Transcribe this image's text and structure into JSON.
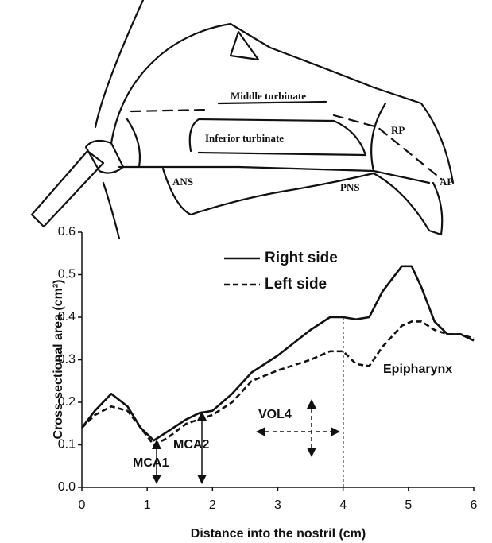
{
  "diagram": {
    "labels": [
      "Middle turbinate",
      "Inferior turbinate",
      "RP",
      "AP",
      "ANS",
      "PNS"
    ]
  },
  "chart_data": {
    "type": "line",
    "x_label": "Distance into the nostril (cm)",
    "y_label": "Cross-sectional area (cm²)",
    "x": [
      0,
      0.2,
      0.45,
      0.7,
      0.9,
      1.1,
      1.3,
      1.6,
      1.8,
      2.0,
      2.3,
      2.6,
      3.0,
      3.5,
      3.8,
      4.0,
      4.2,
      4.4,
      4.6,
      4.9,
      5.05,
      5.2,
      5.4,
      5.6,
      5.8,
      6.0
    ],
    "series": [
      {
        "name": "Right side",
        "color": "#111111",
        "dash": "solid",
        "values": [
          0.14,
          0.18,
          0.22,
          0.19,
          0.14,
          0.11,
          0.13,
          0.16,
          0.175,
          0.18,
          0.22,
          0.27,
          0.31,
          0.37,
          0.4,
          0.4,
          0.395,
          0.4,
          0.46,
          0.52,
          0.52,
          0.47,
          0.39,
          0.36,
          0.36,
          0.345
        ]
      },
      {
        "name": "Left side",
        "color": "#111111",
        "dash": "dashed",
        "values": [
          0.14,
          0.17,
          0.19,
          0.18,
          0.14,
          0.1,
          0.115,
          0.15,
          0.16,
          0.17,
          0.2,
          0.25,
          0.275,
          0.3,
          0.32,
          0.32,
          0.29,
          0.285,
          0.33,
          0.38,
          0.39,
          0.39,
          0.37,
          0.36,
          0.36,
          0.35
        ]
      }
    ],
    "xlim": [
      0,
      6
    ],
    "xticks": [
      0,
      1,
      2,
      3,
      4,
      5,
      6
    ],
    "ylim": [
      0,
      0.6
    ],
    "yticks": [
      {
        "value": 0,
        "label": "0.0"
      },
      0.1,
      0.2,
      0.3,
      0.4,
      0.5,
      0.6
    ],
    "grid": false,
    "annotations": [
      "MCA1",
      "MCA2",
      "VOL4",
      "Epipharynx"
    ]
  }
}
